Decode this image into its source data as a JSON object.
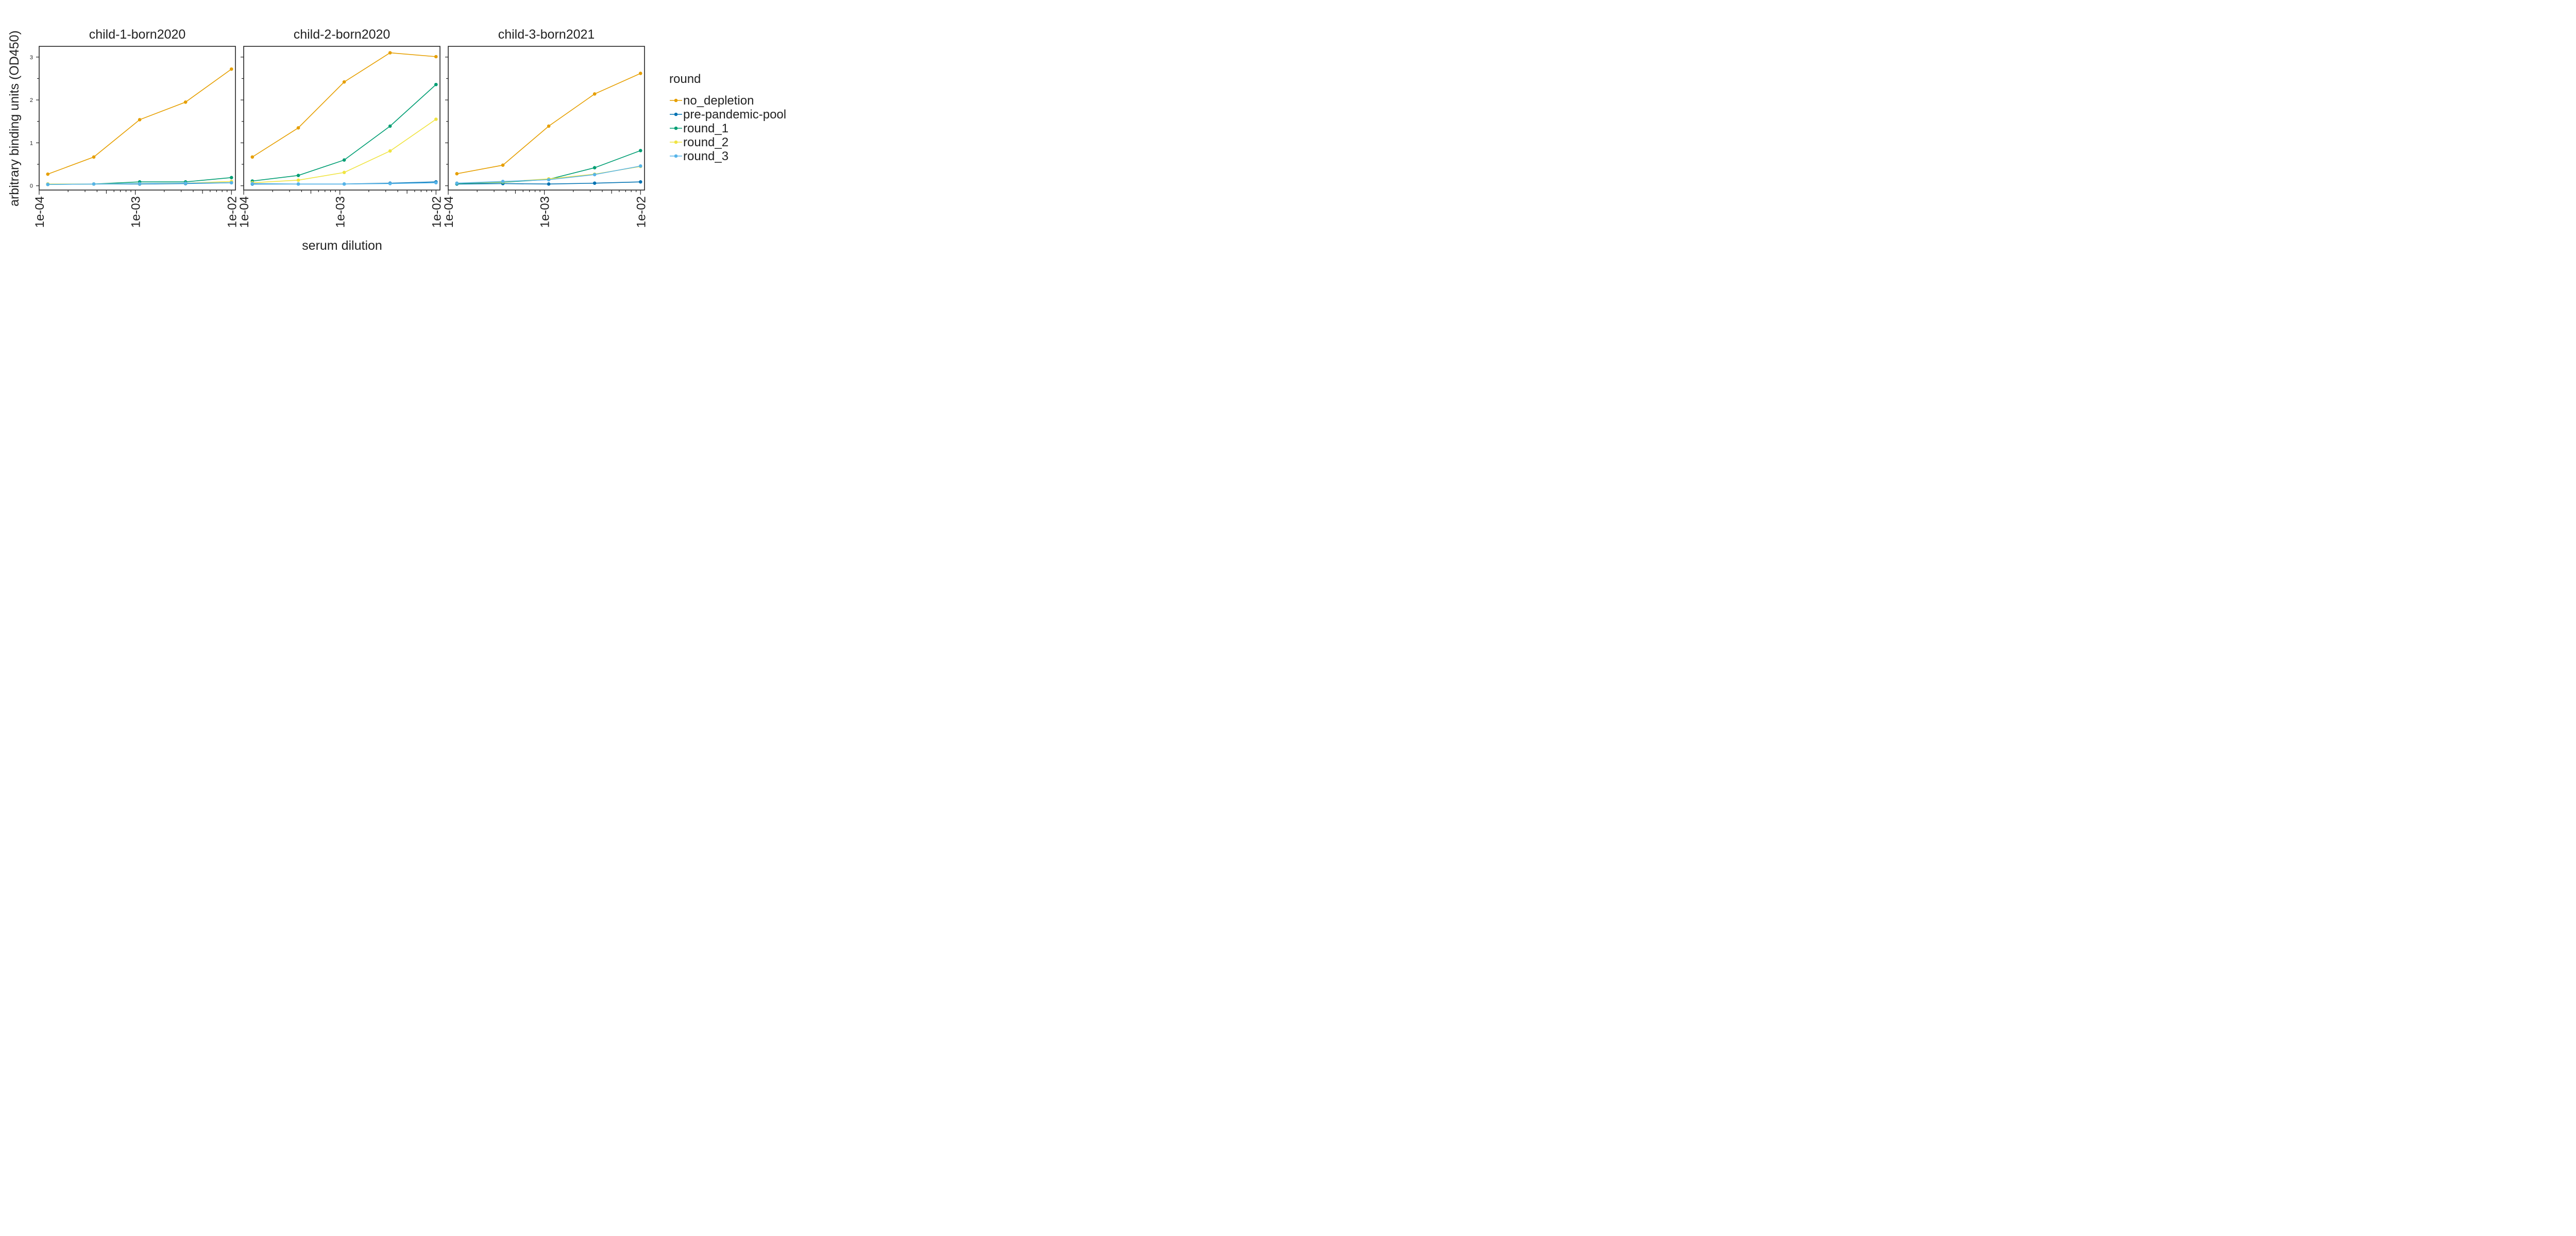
{
  "chart_data": {
    "type": "line",
    "xlabel": "serum dilution",
    "ylabel": "arbitrary binding units (OD450)",
    "xscale": "log",
    "xlim": [
      0.0001,
      0.011
    ],
    "ylim": [
      -0.1,
      3.25
    ],
    "x_ticks": [
      0.0001,
      0.001,
      0.01
    ],
    "x_tick_labels": [
      "1e-04",
      "1e-03",
      "1e-02"
    ],
    "y_ticks": [
      0,
      1,
      2,
      3
    ],
    "y_tick_labels": [
      "0",
      "1",
      "2",
      "3"
    ],
    "legend": {
      "title": "round",
      "placement": "right",
      "entries": [
        "no_depletion",
        "pre-pandemic-pool",
        "round_1",
        "round_2",
        "round_3"
      ]
    },
    "colors": {
      "no_depletion": "#E69F00",
      "pre-pandemic-pool": "#0072B2",
      "round_1": "#009E73",
      "round_2": "#F0E442",
      "round_3": "#56B4E9"
    },
    "x": [
      0.000123,
      0.00037,
      0.00111,
      0.00333,
      0.01
    ],
    "panels": [
      {
        "title": "child-1-born2020",
        "series": [
          {
            "name": "no_depletion",
            "values": [
              0.27,
              0.67,
              1.54,
              1.95,
              2.72
            ]
          },
          {
            "name": "pre-pandemic-pool",
            "values": [
              0.04,
              0.04,
              0.04,
              0.05,
              0.07
            ]
          },
          {
            "name": "round_1",
            "values": [
              0.03,
              0.04,
              0.09,
              0.09,
              0.19
            ]
          },
          {
            "name": "round_2",
            "values": [
              0.04,
              0.04,
              0.05,
              0.06,
              0.1
            ]
          },
          {
            "name": "round_3",
            "values": [
              0.03,
              0.04,
              0.05,
              0.06,
              0.07
            ]
          }
        ]
      },
      {
        "title": "child-2-born2020",
        "series": [
          {
            "name": "no_depletion",
            "values": [
              0.67,
              1.35,
              2.42,
              3.1,
              3.01
            ]
          },
          {
            "name": "pre-pandemic-pool",
            "values": [
              0.04,
              0.04,
              0.04,
              0.06,
              0.09
            ]
          },
          {
            "name": "round_1",
            "values": [
              0.11,
              0.24,
              0.6,
              1.39,
              2.36
            ]
          },
          {
            "name": "round_2",
            "values": [
              0.07,
              0.13,
              0.31,
              0.81,
              1.55
            ]
          },
          {
            "name": "round_3",
            "values": [
              0.05,
              0.04,
              0.04,
              0.05,
              0.07
            ]
          }
        ]
      },
      {
        "title": "child-3-born2021",
        "series": [
          {
            "name": "no_depletion",
            "values": [
              0.28,
              0.48,
              1.39,
              2.14,
              2.62
            ]
          },
          {
            "name": "pre-pandemic-pool",
            "values": [
              0.04,
              0.05,
              0.04,
              0.06,
              0.09
            ]
          },
          {
            "name": "round_1",
            "values": [
              0.05,
              0.08,
              0.15,
              0.42,
              0.82
            ]
          },
          {
            "name": "round_2",
            "values": [
              0.06,
              0.09,
              0.16,
              0.27,
              0.45
            ]
          },
          {
            "name": "round_3",
            "values": [
              0.06,
              0.1,
              0.14,
              0.26,
              0.46
            ]
          }
        ]
      }
    ]
  }
}
